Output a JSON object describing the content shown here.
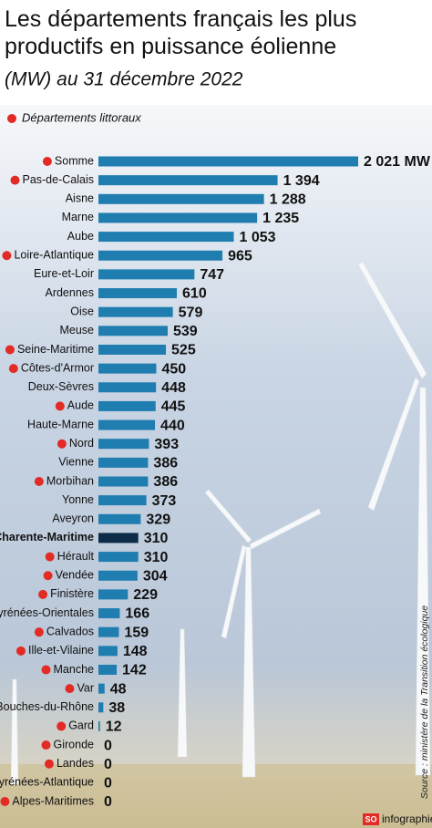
{
  "chart_data": {
    "type": "bar",
    "orientation": "horizontal",
    "title": "Les départements français les plus productifs en puissance éolienne",
    "subtitle": "(MW) au 31 décembre 2022",
    "legend": "Départements littoraux",
    "marker_color": "#e32b26",
    "categories": [
      "Somme",
      "Pas-de-Calais",
      "Aisne",
      "Marne",
      "Aube",
      "Loire-Atlantique",
      "Eure-et-Loir",
      "Ardennes",
      "Oise",
      "Meuse",
      "Seine-Maritime",
      "Côtes-d'Armor",
      "Deux-Sèvres",
      "Aude",
      "Haute-Marne",
      "Nord",
      "Vienne",
      "Morbihan",
      "Yonne",
      "Aveyron",
      "Charente-Maritime",
      "Hérault",
      "Vendée",
      "Finistère",
      "Pyrénées-Orientales",
      "Calvados",
      "Ille-et-Vilaine",
      "Manche",
      "Var",
      "Bouches-du-Rhône",
      "Gard",
      "Gironde",
      "Landes",
      "Pyrénées-Atlantique",
      "Alpes-Maritimes"
    ],
    "values": [
      2021,
      1394,
      1288,
      1235,
      1053,
      965,
      747,
      610,
      579,
      539,
      525,
      450,
      448,
      445,
      440,
      393,
      386,
      386,
      373,
      329,
      310,
      310,
      304,
      229,
      166,
      159,
      148,
      142,
      48,
      38,
      12,
      0,
      0,
      0,
      0
    ],
    "value_labels": [
      "2 021 MW",
      "1 394",
      "1 288",
      "1 235",
      "1 053",
      "965",
      "747",
      "610",
      "579",
      "539",
      "525",
      "450",
      "448",
      "445",
      "440",
      "393",
      "386",
      "386",
      "373",
      "329",
      "310",
      "310",
      "304",
      "229",
      "166",
      "159",
      "148",
      "142",
      "48",
      "38",
      "12",
      "0",
      "0",
      "0",
      "0"
    ],
    "coastal": [
      true,
      true,
      false,
      false,
      false,
      true,
      false,
      false,
      false,
      false,
      true,
      true,
      false,
      true,
      false,
      true,
      false,
      true,
      false,
      false,
      true,
      true,
      true,
      true,
      true,
      true,
      true,
      true,
      true,
      true,
      true,
      true,
      true,
      true,
      true
    ],
    "color": "#1f7db0",
    "colors": [
      "#1f7db0",
      "#1f7db0",
      "#1f7db0",
      "#1f7db0",
      "#1f7db0",
      "#1f7db0",
      "#1f7db0",
      "#1f7db0",
      "#1f7db0",
      "#1f7db0",
      "#1f7db0",
      "#1f7db0",
      "#1f7db0",
      "#1f7db0",
      "#1f7db0",
      "#1f7db0",
      "#1f7db0",
      "#1f7db0",
      "#1f7db0",
      "#1f7db0",
      "#0c2c47",
      "#1f7db0",
      "#1f7db0",
      "#1f7db0",
      "#1f7db0",
      "#1f7db0",
      "#1f7db0",
      "#1f7db0",
      "#1f7db0",
      "#1f7db0",
      "#1f7db0",
      "#1f7db0",
      "#1f7db0",
      "#1f7db0",
      "#1f7db0"
    ],
    "source": "Source : ministère de la Transition écologique",
    "footer_logo": "SO",
    "footer_text": "infographie"
  }
}
